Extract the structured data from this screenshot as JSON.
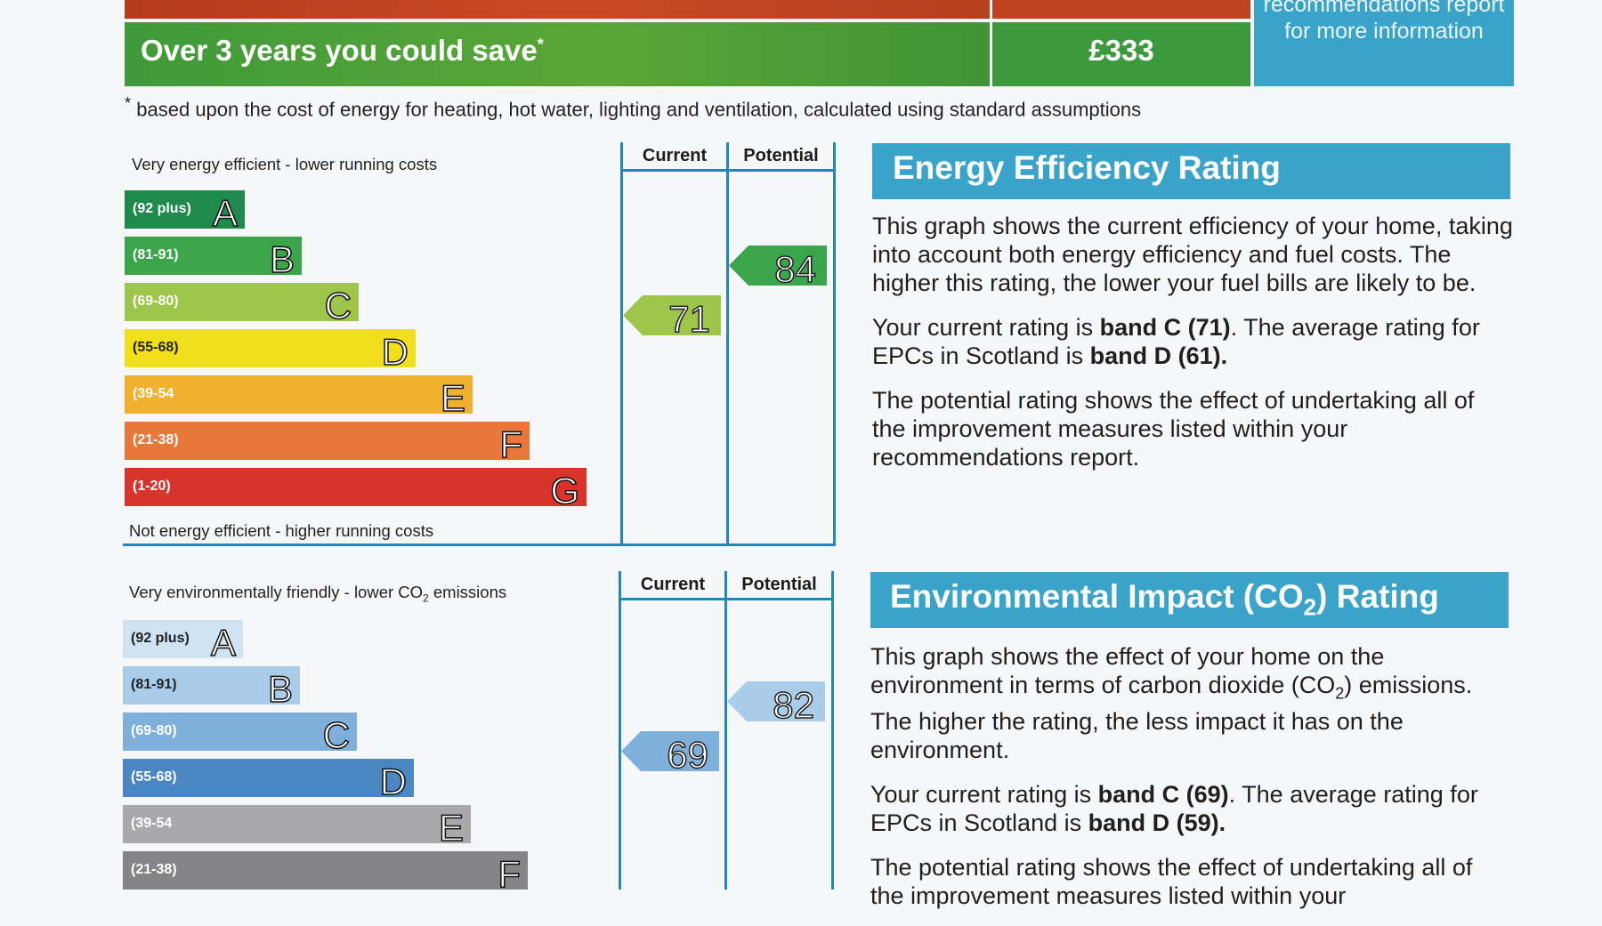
{
  "savings": {
    "label": "Over 3 years you could save",
    "marker": "*",
    "amount": "£333",
    "recommendations_text": "recommendations report for more information",
    "footnote_marker": "*",
    "footnote": "based upon the cost of energy for heating, hot water, lighting and ventilation, calculated using standard assumptions"
  },
  "energy_graph": {
    "top_caption": "Very energy efficient - lower running costs",
    "bottom_caption": "Not energy efficient - higher running costs",
    "col_current": "Current",
    "col_potential": "Potential",
    "bands": [
      {
        "range": "(92 plus)",
        "letter": "A",
        "color": "#1f8a4c"
      },
      {
        "range": "(81-91)",
        "letter": "B",
        "color": "#3aa54a"
      },
      {
        "range": "(69-80)",
        "letter": "C",
        "color": "#9cc54a"
      },
      {
        "range": "(55-68)",
        "letter": "D",
        "color": "#f2df1c"
      },
      {
        "range": "(39-54",
        "letter": "E",
        "color": "#f1b12f"
      },
      {
        "range": "(21-38)",
        "letter": "F",
        "color": "#e8773a"
      },
      {
        "range": "(1-20)",
        "letter": "G",
        "color": "#d8342c"
      }
    ],
    "current": {
      "value": "71",
      "band": "C",
      "color": "#9cc54a"
    },
    "potential": {
      "value": "84",
      "band": "B",
      "color": "#3aa54a"
    }
  },
  "co2_graph": {
    "top_caption": "Very environmentally friendly - lower CO",
    "top_caption_sub": "2",
    "top_caption_end": " emissions",
    "col_current": "Current",
    "col_potential": "Potential",
    "bands": [
      {
        "range": "(92 plus)",
        "letter": "A",
        "color": "#cfe3f2"
      },
      {
        "range": "(81-91)",
        "letter": "B",
        "color": "#a9cde8"
      },
      {
        "range": "(69-80)",
        "letter": "C",
        "color": "#7fb0dc"
      },
      {
        "range": "(55-68)",
        "letter": "D",
        "color": "#4a86c2"
      },
      {
        "range": "(39-54",
        "letter": "E",
        "color": "#a9a9ab"
      },
      {
        "range": "(21-38)",
        "letter": "F",
        "color": "#858587"
      }
    ],
    "current": {
      "value": "69",
      "band": "C",
      "color": "#7fb0dc"
    },
    "potential": {
      "value": "82",
      "band": "B",
      "color": "#a9cde8"
    }
  },
  "energy_panel": {
    "title": "Energy Efficiency Rating",
    "p1": "This graph shows the current efficiency of your home, taking into account both energy efficiency and fuel costs. The higher this rating, the lower your fuel bills are likely to be.",
    "p2_a": "Your current rating is ",
    "p2_b": "band C (71)",
    "p2_c": ". The average rating for EPCs in Scotland is ",
    "p2_d": "band D (61).",
    "p3": "The potential rating shows the effect of undertaking all of the improvement measures listed within your recommendations report."
  },
  "co2_panel": {
    "title_a": "Environmental Impact (CO",
    "title_sub": "2",
    "title_b": ") Rating",
    "p1_a": "This graph shows the effect of your home on the environment in terms of carbon dioxide (CO",
    "p1_sub": "2",
    "p1_b": ") emissions. The higher the rating, the less impact it has on the environment.",
    "p2_a": "Your current rating is ",
    "p2_b": "band C (69)",
    "p2_c": ". The average rating for EPCs in Scotland is ",
    "p2_d": "band D (59).",
    "p3": "The potential rating shows the effect of undertaking all of the improvement measures listed within your"
  }
}
